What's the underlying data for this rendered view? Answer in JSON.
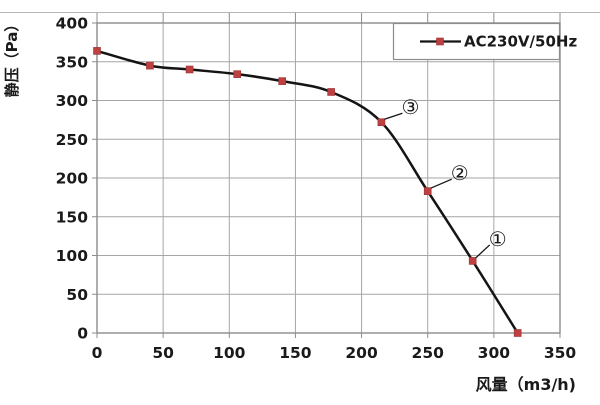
{
  "chart_data": {
    "type": "line",
    "title": "",
    "xlabel": "风量（m3/h)",
    "ylabel": "静压（Pa）",
    "xlim": [
      0,
      350
    ],
    "ylim": [
      0,
      400
    ],
    "x_ticks": [
      0,
      50,
      100,
      150,
      200,
      250,
      300,
      350
    ],
    "y_ticks": [
      0,
      50,
      100,
      150,
      200,
      250,
      300,
      350,
      400
    ],
    "grid": true,
    "legend_position": "top-right",
    "series": [
      {
        "name": "AC230V/50Hz",
        "marker": "square",
        "points": [
          [
            0,
            364
          ],
          [
            40,
            345
          ],
          [
            70,
            340
          ],
          [
            106,
            334
          ],
          [
            140,
            325
          ],
          [
            177,
            311
          ],
          [
            215,
            272
          ],
          [
            250,
            183
          ],
          [
            284,
            93
          ],
          [
            318,
            0
          ]
        ]
      }
    ],
    "annotations": [
      {
        "label": "③",
        "point": [
          215,
          272
        ],
        "offset": [
          29,
          -15
        ]
      },
      {
        "label": "②",
        "point": [
          250,
          183
        ],
        "offset": [
          32,
          -18
        ]
      },
      {
        "label": "①",
        "point": [
          284,
          93
        ],
        "offset": [
          25,
          -22
        ]
      }
    ]
  },
  "colors": {
    "line": "#141414",
    "marker": "#bf4040",
    "marker_edge": "#993333",
    "grid": "#a6a6a6",
    "border": "#8c8c8c",
    "frame": "#b5b5b5",
    "text": "#1a1a1a"
  }
}
